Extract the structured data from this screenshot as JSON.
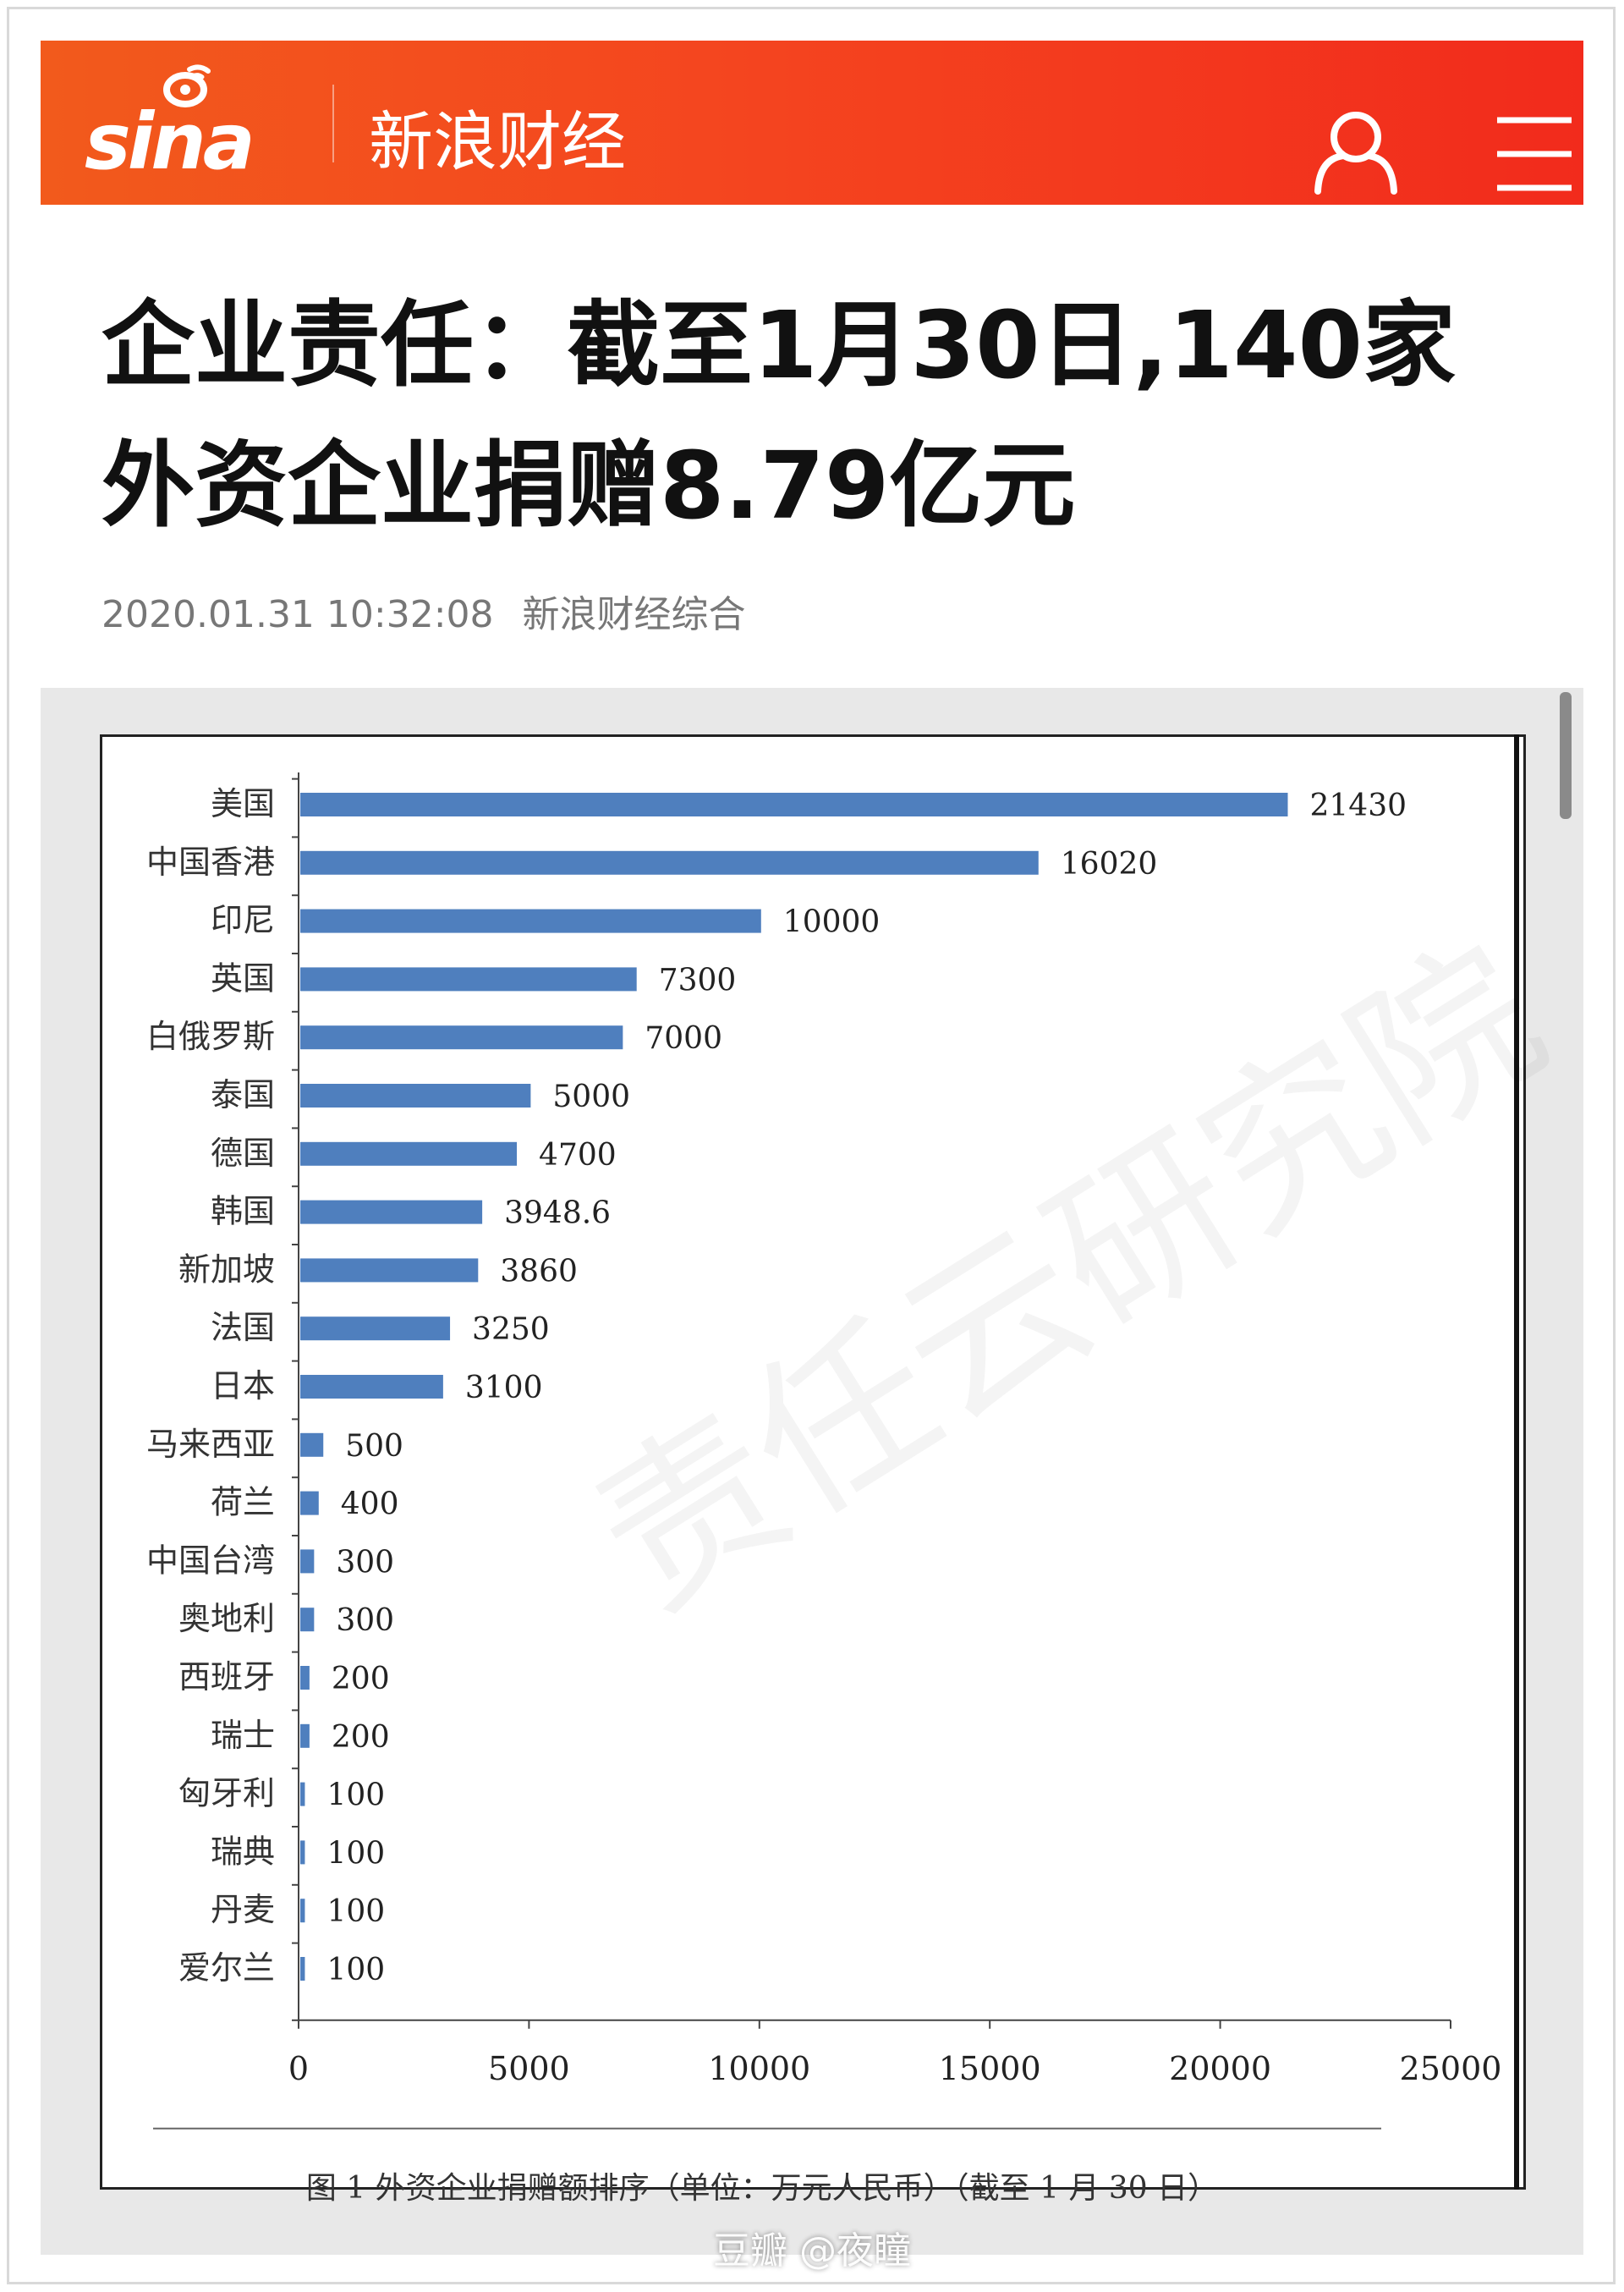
{
  "header": {
    "logo_text": "sina",
    "section": "新浪财经",
    "brand_color": "#f23f1d",
    "user_icon": "user-icon",
    "menu_icon": "menu-icon"
  },
  "article": {
    "title": "企业责任：截至1月30日,140家外资企业捐赠8.79亿元",
    "date": "2020.01.31 10:32:08",
    "source": "新浪财经综合"
  },
  "chart_data": {
    "type": "bar",
    "orientation": "horizontal",
    "categories": [
      "美国",
      "中国香港",
      "印尼",
      "英国",
      "白俄罗斯",
      "泰国",
      "德国",
      "韩国",
      "新加坡",
      "法国",
      "日本",
      "马来西亚",
      "荷兰",
      "中国台湾",
      "奥地利",
      "西班牙",
      "瑞士",
      "匈牙利",
      "瑞典",
      "丹麦",
      "爱尔兰"
    ],
    "values": [
      21430,
      16020,
      10000,
      7300,
      7000,
      5000,
      4700,
      3948.6,
      3860,
      3250,
      3100,
      500,
      400,
      300,
      300,
      200,
      200,
      100,
      100,
      100,
      100
    ],
    "value_labels": [
      "21430",
      "16020",
      "10000",
      "7300",
      "7000",
      "5000",
      "4700",
      "3948.6",
      "3860",
      "3250",
      "3100",
      "500",
      "400",
      "300",
      "300",
      "200",
      "200",
      "100",
      "100",
      "100",
      "100"
    ],
    "xlim": [
      0,
      25000
    ],
    "xticks": [
      "0",
      "5000",
      "10000",
      "15000",
      "20000",
      "25000"
    ],
    "bar_color": "#4f7fbe",
    "caption": "图 1  外资企业捐赠额排序（单位：万元人民币）（截至 1 月 30 日）",
    "watermark": "责任云研究院"
  },
  "footer": {
    "watermark": "豆瓣 @夜瞳"
  }
}
